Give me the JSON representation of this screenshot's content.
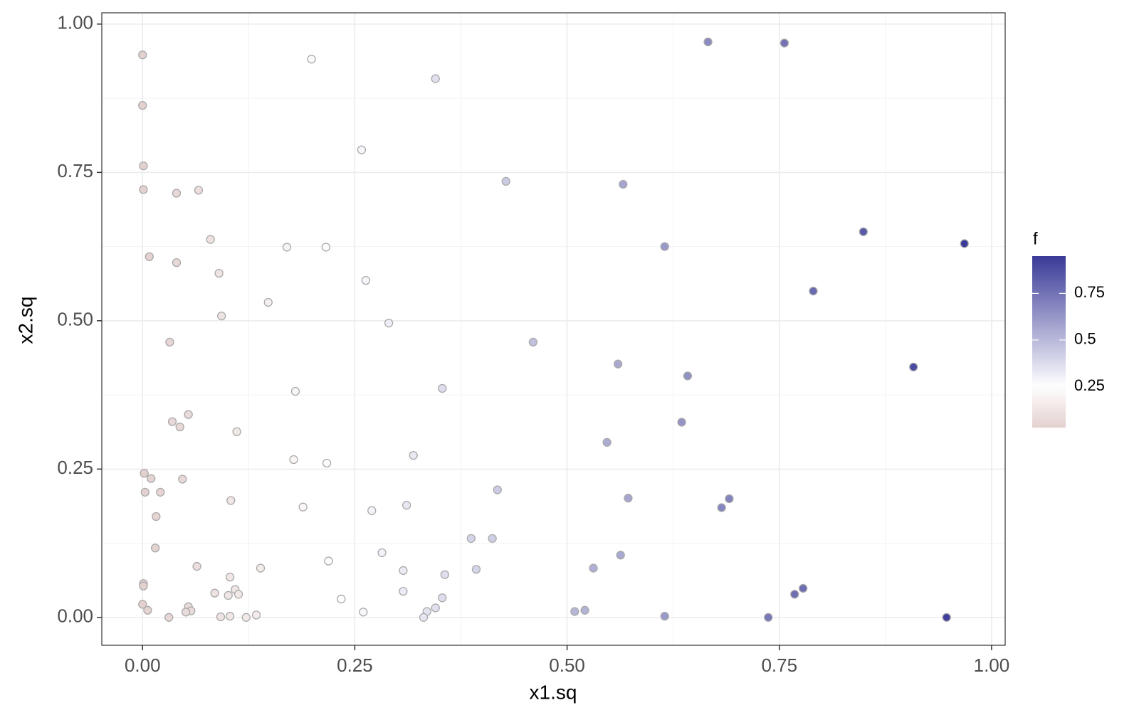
{
  "chart_data": {
    "type": "scatter",
    "x_label": "x1.sq",
    "y_label": "x2.sq",
    "x": [
      0,
      0,
      0.001,
      0.001,
      0.04,
      0.066,
      0.08,
      0.008,
      0.04,
      0.09,
      0.093,
      0.032,
      0.035,
      0.054,
      0.044,
      0.111,
      0.002,
      0.01,
      0.047,
      0.003,
      0.021,
      0.016,
      0.104,
      0.015,
      0.064,
      0.001,
      0.001,
      0.103,
      0.085,
      0.109,
      0.101,
      0.113,
      0.139,
      0,
      0.006,
      0.054,
      0.057,
      0.051,
      0.031,
      0.092,
      0.103,
      0.122,
      0.134,
      0.199,
      0.258,
      0.17,
      0.216,
      0.263,
      0.148,
      0.29,
      0.18,
      0.178,
      0.217,
      0.189,
      0.27,
      0.219,
      0.282,
      0.234,
      0.26,
      0.345,
      0.353,
      0.319,
      0.311,
      0.307,
      0.356,
      0.307,
      0.353,
      0.335,
      0.345,
      0.331,
      0.428,
      0.46,
      0.418,
      0.387,
      0.412,
      0.393,
      0.566,
      0.615,
      0.56,
      0.642,
      0.635,
      0.547,
      0.572,
      0.563,
      0.531,
      0.509,
      0.521,
      0.615,
      0.666,
      0.756,
      0.849,
      0.968,
      0.79,
      0.908,
      0.691,
      0.682,
      0.778,
      0.768,
      0.737,
      0.947
    ],
    "y": [
      0.948,
      0.863,
      0.761,
      0.721,
      0.715,
      0.72,
      0.637,
      0.608,
      0.598,
      0.58,
      0.508,
      0.464,
      0.33,
      0.342,
      0.321,
      0.313,
      0.243,
      0.234,
      0.233,
      0.211,
      0.211,
      0.17,
      0.197,
      0.117,
      0.086,
      0.057,
      0.053,
      0.068,
      0.041,
      0.047,
      0.037,
      0.039,
      0.083,
      0.022,
      0.012,
      0.018,
      0.011,
      0.009,
      0,
      0.001,
      0.002,
      0,
      0.004,
      0.941,
      0.788,
      0.624,
      0.624,
      0.568,
      0.531,
      0.496,
      0.381,
      0.266,
      0.26,
      0.186,
      0.18,
      0.095,
      0.109,
      0.031,
      0.009,
      0.908,
      0.386,
      0.273,
      0.189,
      0.079,
      0.072,
      0.044,
      0.033,
      0.01,
      0.016,
      0,
      0.735,
      0.464,
      0.215,
      0.133,
      0.133,
      0.081,
      0.73,
      0.625,
      0.427,
      0.407,
      0.329,
      0.295,
      0.201,
      0.105,
      0.083,
      0.01,
      0.012,
      0.002,
      0.97,
      0.968,
      0.65,
      0.63,
      0.55,
      0.422,
      0.2,
      0.185,
      0.049,
      0.039,
      0,
      0
    ],
    "f": [
      0.03,
      0.03,
      0.03,
      0.03,
      0.07,
      0.09,
      0.11,
      0.04,
      0.07,
      0.12,
      0.12,
      0.06,
      0.06,
      0.08,
      0.07,
      0.14,
      0.03,
      0.04,
      0.07,
      0.03,
      0.05,
      0.05,
      0.13,
      0.04,
      0.09,
      0.03,
      0.03,
      0.13,
      0.11,
      0.13,
      0.13,
      0.14,
      0.16,
      0.03,
      0.04,
      0.08,
      0.08,
      0.08,
      0.06,
      0.12,
      0.13,
      0.15,
      0.16,
      0.22,
      0.28,
      0.19,
      0.24,
      0.28,
      0.17,
      0.31,
      0.2,
      0.2,
      0.24,
      0.21,
      0.29,
      0.24,
      0.3,
      0.25,
      0.28,
      0.36,
      0.37,
      0.33,
      0.33,
      0.32,
      0.37,
      0.32,
      0.37,
      0.35,
      0.36,
      0.34,
      0.44,
      0.47,
      0.43,
      0.4,
      0.42,
      0.4,
      0.57,
      0.61,
      0.56,
      0.64,
      0.63,
      0.55,
      0.57,
      0.56,
      0.53,
      0.51,
      0.52,
      0.61,
      0.66,
      0.75,
      0.84,
      0.95,
      0.78,
      0.89,
      0.69,
      0.68,
      0.77,
      0.76,
      0.73,
      0.93
    ],
    "xlim": [
      -0.048,
      1.016
    ],
    "ylim": [
      -0.047,
      1.019
    ],
    "xticks": [
      {
        "value": 0,
        "label": "0.00"
      },
      {
        "value": 0.25,
        "label": "0.25"
      },
      {
        "value": 0.5,
        "label": "0.50"
      },
      {
        "value": 0.75,
        "label": "0.75"
      },
      {
        "value": 1,
        "label": "1.00"
      }
    ],
    "yticks": [
      {
        "value": 0,
        "label": "0.00"
      },
      {
        "value": 0.25,
        "label": "0.25"
      },
      {
        "value": 0.5,
        "label": "0.50"
      },
      {
        "value": 0.75,
        "label": "0.75"
      },
      {
        "value": 1,
        "label": "1.00"
      }
    ],
    "grid": true,
    "colorbar": {
      "title": "f",
      "ticks": [
        0.25,
        0.5,
        0.75
      ],
      "low_color": "#e3d1cf",
      "mid_color": "#ffffff",
      "high_color": "#3a3a98",
      "midpoint": 0.25,
      "point_stroke": "#a9a9a9"
    }
  }
}
